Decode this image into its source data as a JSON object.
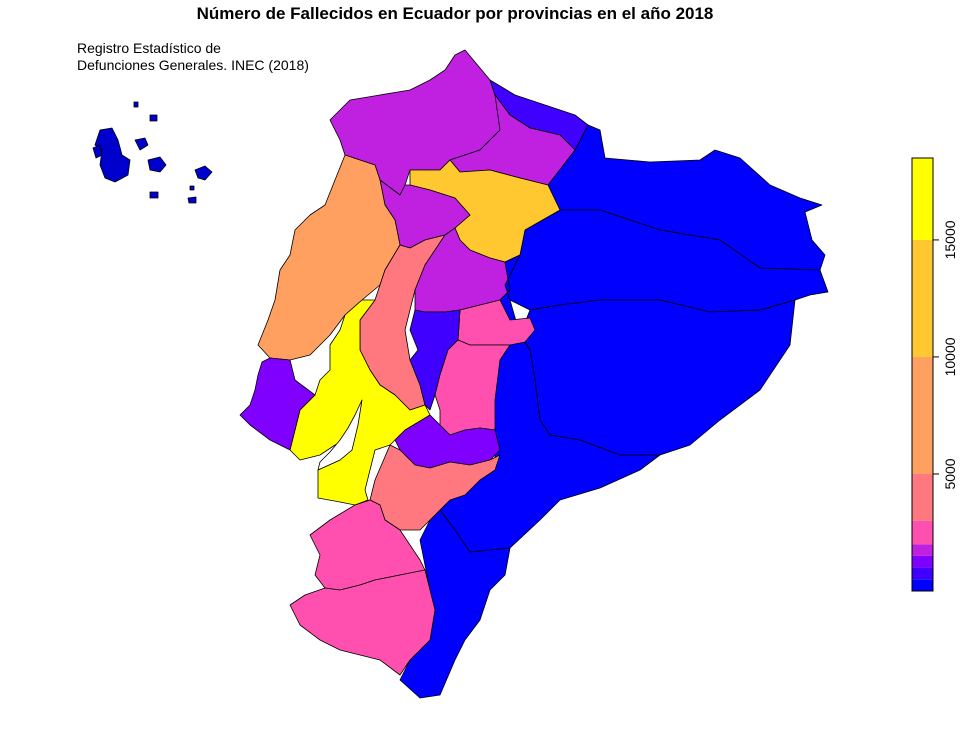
{
  "title": "Número de Fallecidos en Ecuador por provincias en el año 2018",
  "source_lines": [
    "Registro Estadístico de",
    "Defunciones Generales. INEC (2018)"
  ],
  "palette": [
    "#0000FF",
    "#4000FF",
    "#8000FF",
    "#C020E0",
    "#FF50B0",
    "#FF7880",
    "#FFA060",
    "#FFC830",
    "#FFFF00"
  ],
  "legend": {
    "ticks": [
      "5000",
      "10000",
      "15000"
    ],
    "bins": [
      {
        "color": "#0000FF"
      },
      {
        "color": "#4000FF"
      },
      {
        "color": "#8000FF"
      },
      {
        "color": "#C020E0"
      },
      {
        "color": "#FF50B0"
      },
      {
        "color": "#FF7880"
      },
      {
        "color": "#FFA060"
      },
      {
        "color": "#FFC830"
      },
      {
        "color": "#FFFF00"
      }
    ]
  },
  "chart_data": {
    "type": "choropleth",
    "title": "Número de Fallecidos en Ecuador por provincias en el año 2018",
    "scale_range": [
      0,
      18500
    ],
    "scale_breaks": [
      0,
      500,
      1000,
      1500,
      2000,
      3000,
      5000,
      10000,
      15000,
      18500
    ]
  }
}
